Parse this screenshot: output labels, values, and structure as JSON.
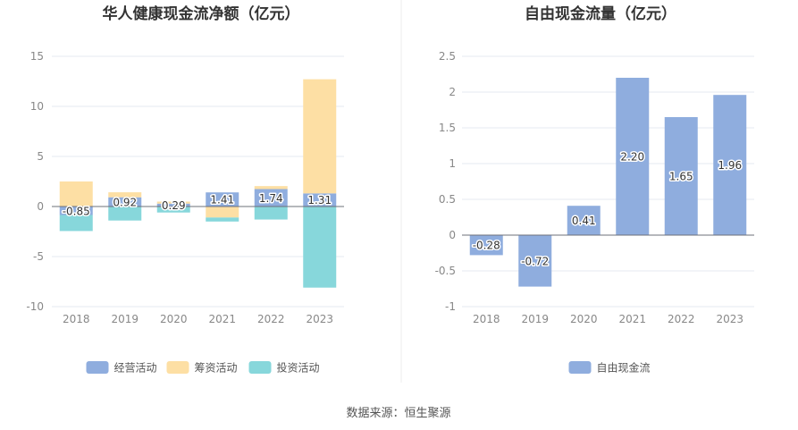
{
  "source_text": "数据来源：恒生聚源",
  "chart_data": [
    {
      "type": "bar",
      "stacked": true,
      "title": "华人健康现金流净额（亿元）",
      "categories": [
        "2018",
        "2019",
        "2020",
        "2021",
        "2022",
        "2023"
      ],
      "ylim": [
        -10,
        15
      ],
      "yticks": [
        15,
        10,
        5,
        0,
        -5,
        -10
      ],
      "grid": true,
      "legend_position": "bottom",
      "series": [
        {
          "name": "经营活动",
          "color": "#8fadde",
          "values": [
            -0.85,
            0.92,
            0.29,
            1.41,
            1.74,
            1.31
          ],
          "labels": [
            "-0.85",
            "0.92",
            "0.29",
            "1.41",
            "1.74",
            "1.31"
          ]
        },
        {
          "name": "筹资活动",
          "color": "#fddfa4",
          "values": [
            2.5,
            0.5,
            0.2,
            -1.1,
            0.3,
            11.4
          ]
        },
        {
          "name": "投资活动",
          "color": "#87d7db",
          "values": [
            -1.6,
            -1.4,
            -0.6,
            -0.4,
            -1.3,
            -8.1
          ]
        }
      ]
    },
    {
      "type": "bar",
      "title": "自由现金流量（亿元）",
      "categories": [
        "2018",
        "2019",
        "2020",
        "2021",
        "2022",
        "2023"
      ],
      "ylim": [
        -1,
        2.5
      ],
      "yticks": [
        2.5,
        2,
        1.5,
        1,
        0.5,
        0,
        -0.5,
        -1
      ],
      "grid": true,
      "legend_position": "bottom",
      "series": [
        {
          "name": "自由现金流",
          "color": "#8fadde",
          "values": [
            -0.28,
            -0.72,
            0.41,
            2.2,
            1.65,
            1.96
          ],
          "labels": [
            "-0.28",
            "-0.72",
            "0.41",
            "2.20",
            "1.65",
            "1.96"
          ]
        }
      ]
    }
  ]
}
